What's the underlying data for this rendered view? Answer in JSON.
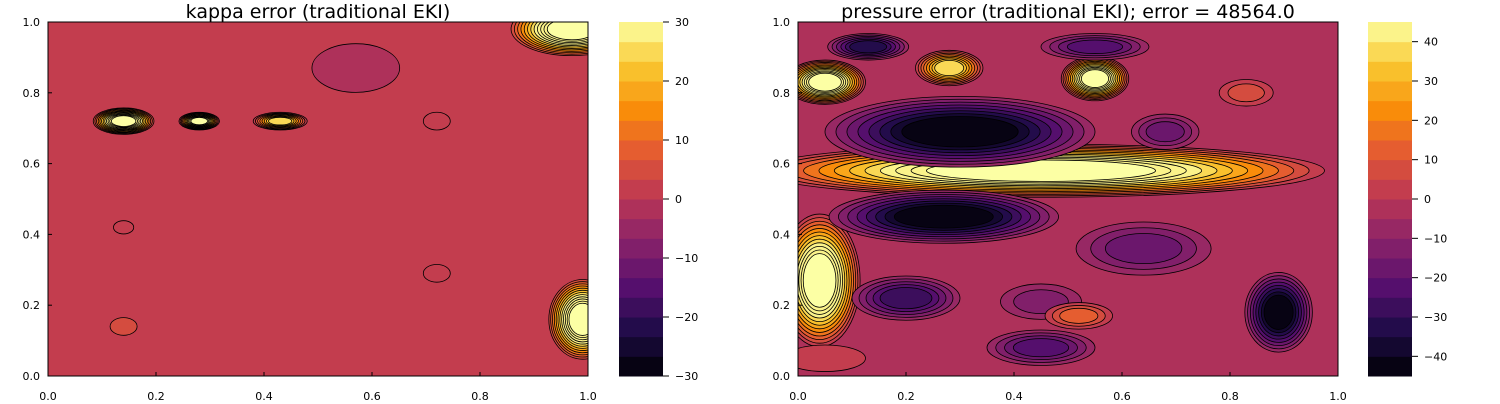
{
  "chart_data": [
    {
      "type": "heatmap",
      "subtype": "filled-contour",
      "title": "kappa error (traditional EKI)",
      "xlim": [
        0,
        1
      ],
      "ylim": [
        0,
        1
      ],
      "x_ticks": [
        "0.0",
        "0.2",
        "0.4",
        "0.6",
        "0.8",
        "1.0"
      ],
      "y_ticks": [
        "0.0",
        "0.2",
        "0.4",
        "0.6",
        "0.8",
        "1.0"
      ],
      "colorbar": {
        "colormap": "inferno",
        "range": [
          -30,
          30
        ],
        "ticks": [
          "−30",
          "−20",
          "−10",
          "0",
          "10",
          "20",
          "30"
        ],
        "levels": 18
      },
      "background_value": 0,
      "features": [
        {
          "x": 0.14,
          "y": 0.72,
          "value": 40,
          "rx": 0.045,
          "ry": 0.03
        },
        {
          "x": 0.28,
          "y": 0.72,
          "value": 35,
          "rx": 0.03,
          "ry": 0.02
        },
        {
          "x": 0.43,
          "y": 0.72,
          "value": 25,
          "rx": 0.04,
          "ry": 0.02
        },
        {
          "x": 0.57,
          "y": 0.87,
          "value": -3,
          "rx": 0.065,
          "ry": 0.055
        },
        {
          "x": 0.72,
          "y": 0.72,
          "value": 3,
          "rx": 0.02,
          "ry": 0.02
        },
        {
          "x": 0.72,
          "y": 0.29,
          "value": 3,
          "rx": 0.02,
          "ry": 0.02
        },
        {
          "x": 0.14,
          "y": 0.14,
          "value": 4,
          "rx": 0.02,
          "ry": 0.02
        },
        {
          "x": 0.14,
          "y": 0.42,
          "value": 3,
          "rx": 0.015,
          "ry": 0.015
        },
        {
          "x": 0.97,
          "y": 0.98,
          "value": 45,
          "rx": 0.09,
          "ry": 0.06
        },
        {
          "x": 0.99,
          "y": 0.16,
          "value": 45,
          "rx": 0.05,
          "ry": 0.09
        }
      ]
    },
    {
      "type": "heatmap",
      "subtype": "filled-contour",
      "title": "pressure error (traditional EKI); error = 48564.0",
      "xlim": [
        0,
        1
      ],
      "ylim": [
        0,
        1
      ],
      "x_ticks": [
        "0.0",
        "0.2",
        "0.4",
        "0.6",
        "0.8",
        "1.0"
      ],
      "y_ticks": [
        "0.0",
        "0.2",
        "0.4",
        "0.6",
        "0.8",
        "1.0"
      ],
      "colorbar": {
        "colormap": "inferno",
        "range": [
          -45,
          45
        ],
        "ticks": [
          "−40",
          "−30",
          "−20",
          "−10",
          "0",
          "10",
          "20",
          "30",
          "40"
        ],
        "levels": 18
      },
      "background_value": -5,
      "features": [
        {
          "x": 0.45,
          "y": 0.58,
          "value": 60,
          "rx": 0.42,
          "ry": 0.06
        },
        {
          "x": 0.04,
          "y": 0.27,
          "value": 55,
          "rx": 0.06,
          "ry": 0.15
        },
        {
          "x": 0.05,
          "y": 0.83,
          "value": 55,
          "rx": 0.06,
          "ry": 0.05
        },
        {
          "x": 0.28,
          "y": 0.87,
          "value": 35,
          "rx": 0.05,
          "ry": 0.04
        },
        {
          "x": 0.55,
          "y": 0.84,
          "value": 55,
          "rx": 0.05,
          "ry": 0.05
        },
        {
          "x": 0.3,
          "y": 0.69,
          "value": -45,
          "rx": 0.2,
          "ry": 0.08
        },
        {
          "x": 0.27,
          "y": 0.45,
          "value": -45,
          "rx": 0.17,
          "ry": 0.06
        },
        {
          "x": 0.89,
          "y": 0.18,
          "value": -44,
          "rx": 0.05,
          "ry": 0.09
        },
        {
          "x": 0.2,
          "y": 0.22,
          "value": -30,
          "rx": 0.08,
          "ry": 0.05
        },
        {
          "x": 0.45,
          "y": 0.21,
          "value": -15,
          "rx": 0.06,
          "ry": 0.04
        },
        {
          "x": 0.52,
          "y": 0.17,
          "value": 12,
          "rx": 0.05,
          "ry": 0.03
        },
        {
          "x": 0.45,
          "y": 0.08,
          "value": -25,
          "rx": 0.08,
          "ry": 0.04
        },
        {
          "x": 0.68,
          "y": 0.69,
          "value": -20,
          "rx": 0.05,
          "ry": 0.04
        },
        {
          "x": 0.83,
          "y": 0.8,
          "value": 5,
          "rx": 0.04,
          "ry": 0.03
        },
        {
          "x": 0.64,
          "y": 0.36,
          "value": -20,
          "rx": 0.1,
          "ry": 0.06
        },
        {
          "x": 0.13,
          "y": 0.93,
          "value": -35,
          "rx": 0.06,
          "ry": 0.03
        },
        {
          "x": 0.55,
          "y": 0.93,
          "value": -25,
          "rx": 0.08,
          "ry": 0.03
        },
        {
          "x": 0.05,
          "y": 0.05,
          "value": 0,
          "rx": 0.06,
          "ry": 0.03
        }
      ]
    }
  ]
}
